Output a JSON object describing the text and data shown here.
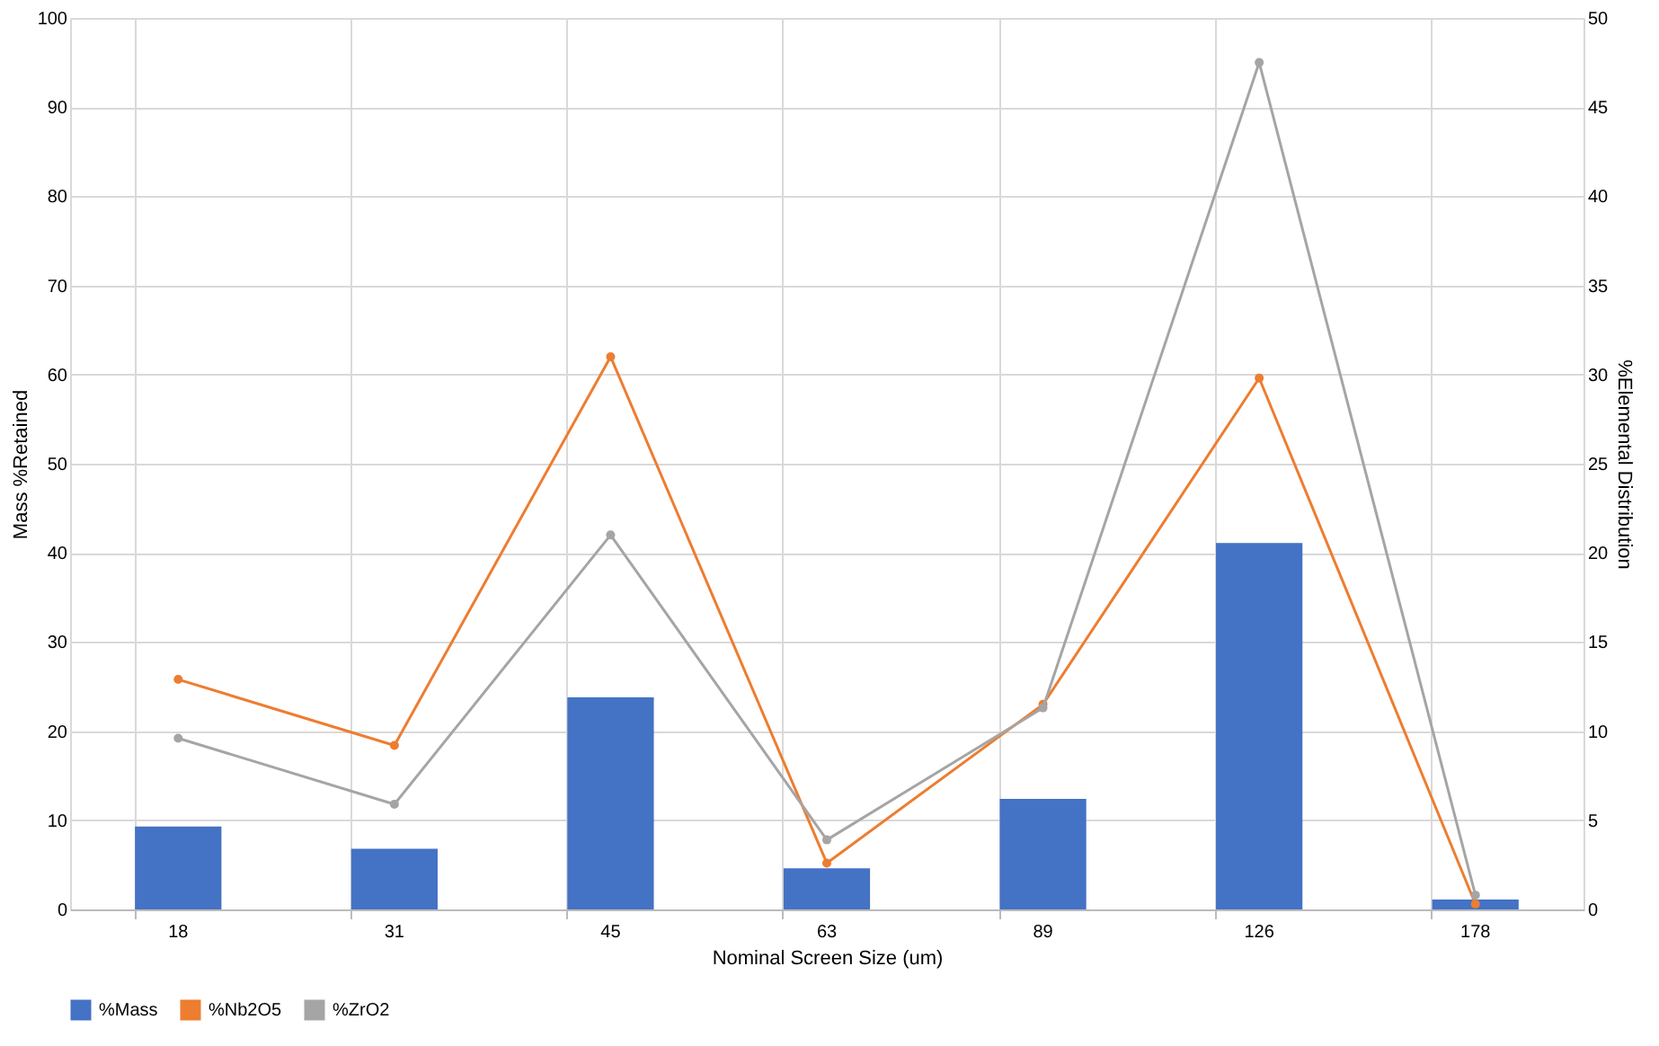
{
  "chart_data": {
    "type": "bar",
    "xlabel": "Nominal Screen Size (um)",
    "ylabel": "Mass %Retained",
    "y2label": "%Elemental Distribution",
    "categories": [
      "18",
      "31",
      "45",
      "63",
      "89",
      "126",
      "178"
    ],
    "series": [
      {
        "name": "%Mass",
        "color": "#4472c4",
        "values": [
          9.3,
          6.8,
          23.8,
          4.6,
          12.4,
          41.1,
          1.1
        ]
      },
      {
        "name": "%Nb2O5",
        "color": "#ed7d31",
        "type": "line",
        "axis": "y2",
        "marker": "circle",
        "values": [
          12.9,
          9.2,
          31.0,
          2.6,
          11.5,
          29.8,
          0.3
        ]
      },
      {
        "name": "%ZrO2",
        "color": "#a5a5a5",
        "type": "line",
        "axis": "y2",
        "marker": "circle",
        "values": [
          9.6,
          5.9,
          21.0,
          3.9,
          11.3,
          47.5,
          0.8
        ]
      }
    ],
    "ylim": [
      0,
      100
    ],
    "yticks": [
      0,
      10,
      20,
      30,
      40,
      50,
      60,
      70,
      80,
      90,
      100
    ],
    "y2lim": [
      0,
      50
    ],
    "y2ticks": [
      0,
      5,
      10,
      15,
      20,
      25,
      30,
      35,
      40,
      45,
      50
    ],
    "grid": true,
    "legend": "bottom"
  }
}
